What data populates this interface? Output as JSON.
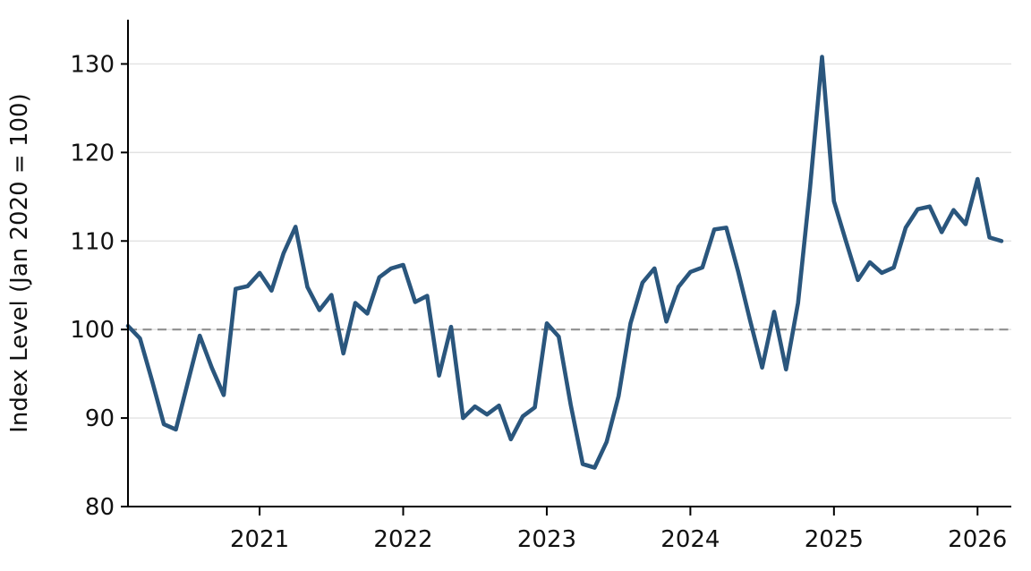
{
  "figure": {
    "background": "#ffffff"
  },
  "chart_data": {
    "type": "line",
    "title": "",
    "ylabel": "Index Level (Jan 2020 = 100)",
    "xlabel": "",
    "x_start": "2020-02",
    "x_frequency": "monthly",
    "x_end": "2026-03",
    "series": [
      {
        "name": "index-level",
        "values": [
          100.4,
          99.0,
          94.3,
          89.3,
          88.7,
          94.0,
          99.3,
          95.7,
          92.6,
          104.6,
          104.9,
          106.4,
          104.4,
          108.6,
          111.6,
          104.8,
          102.2,
          103.9,
          97.3,
          103.0,
          101.8,
          105.9,
          106.9,
          107.3,
          103.1,
          103.8,
          94.8,
          100.3,
          90.0,
          91.3,
          90.4,
          91.4,
          87.6,
          90.2,
          91.2,
          100.7,
          99.2,
          91.5,
          84.8,
          84.4,
          87.3,
          92.5,
          100.7,
          105.3,
          106.9,
          100.9,
          104.8,
          106.5,
          107.0,
          111.3,
          111.5,
          106.5,
          101.0,
          95.7,
          102.0,
          95.5,
          103.0,
          116.0,
          130.8,
          114.5,
          110.0,
          105.6,
          107.6,
          106.4,
          107.0,
          111.5,
          113.6,
          113.9,
          111.0,
          113.5,
          111.9,
          117.0,
          110.4,
          110.0
        ]
      }
    ],
    "baseline": {
      "value": 100,
      "style": "dashed"
    },
    "ylim": [
      80,
      135
    ],
    "yticks": [
      80,
      90,
      100,
      110,
      120,
      130
    ],
    "grid_yticks": [
      90,
      100,
      110,
      120,
      130
    ],
    "xticks": [
      {
        "label": "2021",
        "month_index": 11
      },
      {
        "label": "2022",
        "month_index": 23
      },
      {
        "label": "2023",
        "month_index": 35
      },
      {
        "label": "2024",
        "month_index": 47
      },
      {
        "label": "2025",
        "month_index": 59
      },
      {
        "label": "2026",
        "month_index": 71
      }
    ],
    "grid": "horizontal",
    "legend": "none",
    "colors": {
      "line": "#2a567d",
      "baseline": "#8f8f8f",
      "grid": "#e2e2e2",
      "spine": "#000000",
      "text": "#111111"
    }
  }
}
